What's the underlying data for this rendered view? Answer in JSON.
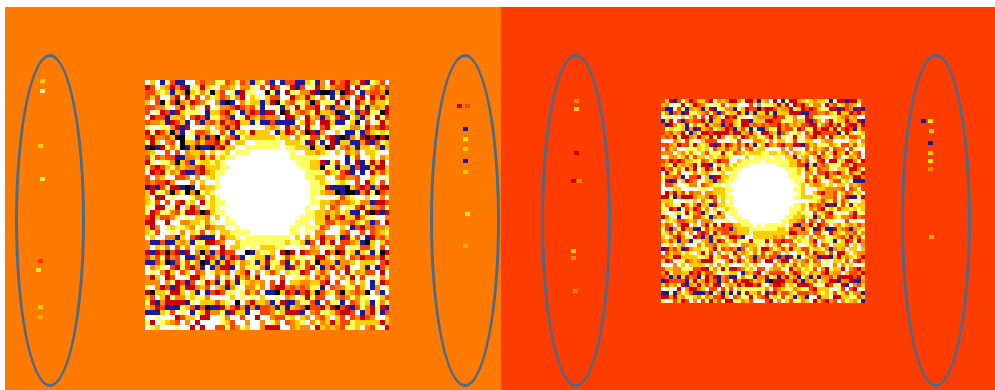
{
  "figure": {
    "panels": [
      {
        "id": "left",
        "background": "#ff7a00",
        "colormap": "hot",
        "core_brightness": 0.95,
        "noise_level": 0.55
      },
      {
        "id": "right",
        "background": "#ff3c00",
        "colormap": "hot",
        "core_brightness": 0.92,
        "noise_level": 0.45
      }
    ],
    "annotation_color": "#4c6a8a",
    "colormap_colors": [
      "#000000",
      "#1a1aa0",
      "#cc0000",
      "#ff4400",
      "#ff8c00",
      "#ffcc00",
      "#ffff66",
      "#ffffff"
    ]
  }
}
